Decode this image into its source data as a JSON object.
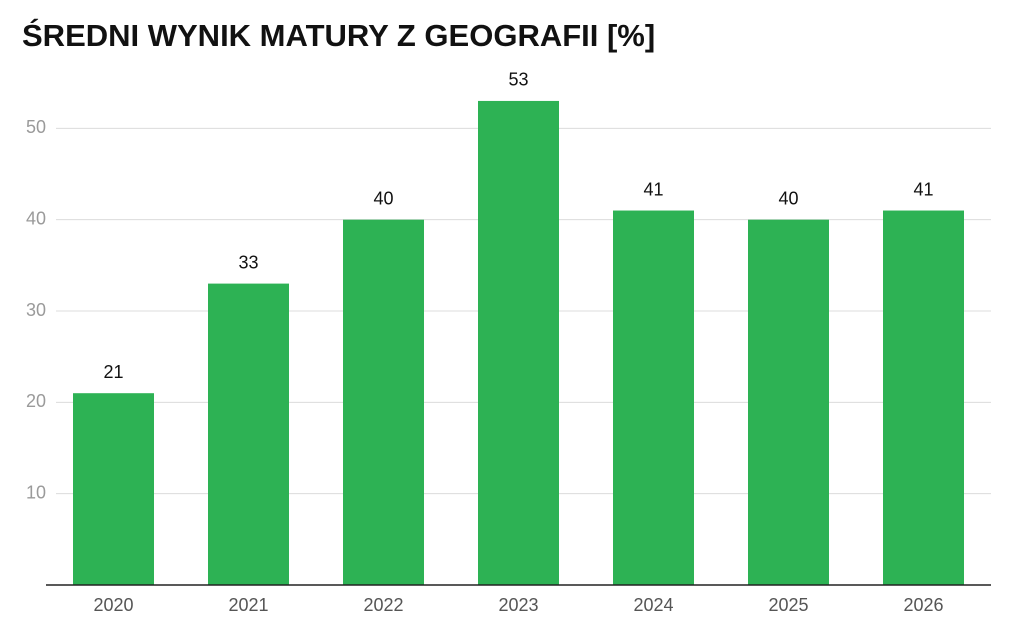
{
  "chart_data": {
    "type": "bar",
    "title": "ŚREDNI WYNIK MATURY Z GEOGRAFII [%]",
    "categories": [
      "2020",
      "2021",
      "2022",
      "2023",
      "2024",
      "2025",
      "2026"
    ],
    "values": [
      21,
      33,
      40,
      53,
      41,
      40,
      41
    ],
    "color": "#2db254",
    "ylim": [
      0,
      60
    ],
    "yticks": [
      10,
      20,
      30,
      40,
      50
    ],
    "grid": true
  }
}
